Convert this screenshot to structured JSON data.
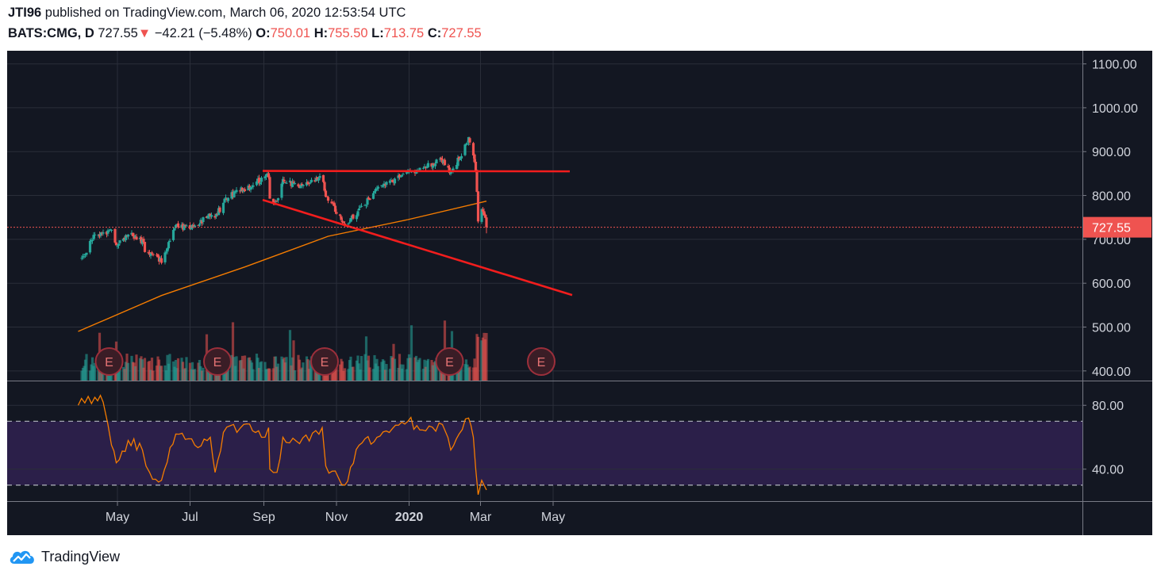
{
  "header": {
    "author": "JTI96",
    "published_text": "published on TradingView.com, March 06, 2020 12:53:54 UTC",
    "symbol": "BATS:CMG, D",
    "last": "727.55",
    "change_arrow": "▼",
    "change": "−42.21 (−5.48%)",
    "o_label": "O:",
    "o_value": "750.01",
    "h_label": "H:",
    "h_value": "755.50",
    "l_label": "L:",
    "l_value": "713.75",
    "c_label": "C:",
    "c_value": "727.55"
  },
  "branding": {
    "logo_text": "TradingView",
    "logo_icon": "tradingview-cloud-icon"
  },
  "colors": {
    "background": "#131722",
    "grid": "#2a2e39",
    "up": "#26a69a",
    "down": "#ef5350",
    "ma": "#f57c00",
    "trendline": "#f21d1d",
    "rsi": "#f57c00",
    "rsi_band": "#2b1f49",
    "axis_text": "#d1d4dc",
    "price_tag": "#ef5350",
    "earnings": "#9c2f3b"
  },
  "chart_data": [
    {
      "type": "candlestick",
      "title": "BATS:CMG, D",
      "price_axis_ticks": [
        "1100.00",
        "1000.00",
        "900.00",
        "800.00",
        "700.00",
        "600.00",
        "500.00",
        "400.00"
      ],
      "ylim": [
        378,
        1130
      ],
      "x_axis_ticks": [
        "May",
        "Jul",
        "Sep",
        "Nov",
        "2020",
        "Mar",
        "May"
      ],
      "current_price_label": "727.55",
      "current_price": 727.55,
      "anchors": [
        {
          "date": "2019-04-01",
          "close": 655
        },
        {
          "date": "2019-04-12",
          "close": 710
        },
        {
          "date": "2019-04-26",
          "close": 718
        },
        {
          "date": "2019-04-30",
          "close": 683
        },
        {
          "date": "2019-05-10",
          "close": 715
        },
        {
          "date": "2019-05-22",
          "close": 696
        },
        {
          "date": "2019-05-24",
          "close": 676
        },
        {
          "date": "2019-06-07",
          "close": 650
        },
        {
          "date": "2019-06-19",
          "close": 730
        },
        {
          "date": "2019-07-05",
          "close": 727
        },
        {
          "date": "2019-07-17",
          "close": 757
        },
        {
          "date": "2019-07-22",
          "close": 752
        },
        {
          "date": "2019-08-01",
          "close": 795
        },
        {
          "date": "2019-08-16",
          "close": 817
        },
        {
          "date": "2019-08-31",
          "close": 837
        },
        {
          "date": "2019-09-05",
          "close": 845
        },
        {
          "date": "2019-09-06",
          "close": 790
        },
        {
          "date": "2019-09-12",
          "close": 790
        },
        {
          "date": "2019-09-17",
          "close": 840
        },
        {
          "date": "2019-10-01",
          "close": 816
        },
        {
          "date": "2019-10-20",
          "close": 845
        },
        {
          "date": "2019-10-23",
          "close": 800
        },
        {
          "date": "2019-11-08",
          "close": 735
        },
        {
          "date": "2019-11-20",
          "close": 765
        },
        {
          "date": "2019-12-05",
          "close": 813
        },
        {
          "date": "2019-12-31",
          "close": 850
        },
        {
          "date": "2020-01-15",
          "close": 868
        },
        {
          "date": "2020-01-29",
          "close": 880
        },
        {
          "date": "2020-02-05",
          "close": 853
        },
        {
          "date": "2020-02-12",
          "close": 885
        },
        {
          "date": "2020-02-20",
          "close": 930
        },
        {
          "date": "2020-02-24",
          "close": 895
        },
        {
          "date": "2020-02-26",
          "close": 850
        },
        {
          "date": "2020-02-27",
          "close": 810
        },
        {
          "date": "2020-02-28",
          "close": 740
        },
        {
          "date": "2020-03-02",
          "close": 770
        },
        {
          "date": "2020-03-04",
          "close": 760
        },
        {
          "date": "2020-03-05",
          "close": 745
        },
        {
          "date": "2020-03-06",
          "close": 727.55
        }
      ],
      "last_bar": {
        "date": "2020-03-06",
        "open": 750.01,
        "high": 755.5,
        "low": 713.75,
        "close": 727.55
      },
      "moving_average": [
        {
          "date": "2019-03-29",
          "value": 490
        },
        {
          "date": "2019-06-07",
          "value": 572
        },
        {
          "date": "2019-08-16",
          "value": 637
        },
        {
          "date": "2019-10-25",
          "value": 707
        },
        {
          "date": "2019-12-31",
          "value": 745
        },
        {
          "date": "2020-03-06",
          "value": 787
        }
      ],
      "trendlines": [
        {
          "from": {
            "date": "2019-08-31",
            "value": 856
          },
          "to": {
            "date": "2020-05-15",
            "value": 855
          }
        },
        {
          "from": {
            "date": "2019-08-31",
            "value": 790
          },
          "to": {
            "date": "2020-05-17",
            "value": 573
          }
        }
      ],
      "earnings_markers": [
        {
          "date": "2019-04-24",
          "label": "E"
        },
        {
          "date": "2019-07-24",
          "label": "E"
        },
        {
          "date": "2019-10-22",
          "label": "E"
        },
        {
          "date": "2020-02-04",
          "label": "E"
        },
        {
          "date": "2020-04-21",
          "label": "E"
        }
      ]
    },
    {
      "type": "line",
      "title": "RSI",
      "y_axis_ticks": [
        "80.00",
        "40.00"
      ],
      "ylim": [
        20,
        95
      ],
      "levels": [
        70,
        30
      ],
      "points": [
        {
          "date": "2019-03-29",
          "value": 80
        },
        {
          "date": "2019-04-12",
          "value": 85
        },
        {
          "date": "2019-04-19",
          "value": 82
        },
        {
          "date": "2019-04-23",
          "value": 68
        },
        {
          "date": "2019-04-26",
          "value": 55
        },
        {
          "date": "2019-04-30",
          "value": 44
        },
        {
          "date": "2019-05-10",
          "value": 58
        },
        {
          "date": "2019-05-22",
          "value": 52
        },
        {
          "date": "2019-05-28",
          "value": 38
        },
        {
          "date": "2019-06-07",
          "value": 33
        },
        {
          "date": "2019-06-19",
          "value": 62
        },
        {
          "date": "2019-07-05",
          "value": 55
        },
        {
          "date": "2019-07-18",
          "value": 60
        },
        {
          "date": "2019-07-22",
          "value": 38
        },
        {
          "date": "2019-07-29",
          "value": 63
        },
        {
          "date": "2019-08-15",
          "value": 68
        },
        {
          "date": "2019-08-30",
          "value": 60
        },
        {
          "date": "2019-09-05",
          "value": 66
        },
        {
          "date": "2019-09-06",
          "value": 40
        },
        {
          "date": "2019-09-12",
          "value": 38
        },
        {
          "date": "2019-09-17",
          "value": 60
        },
        {
          "date": "2019-10-01",
          "value": 56
        },
        {
          "date": "2019-10-20",
          "value": 66
        },
        {
          "date": "2019-10-23",
          "value": 42
        },
        {
          "date": "2019-11-08",
          "value": 30
        },
        {
          "date": "2019-11-20",
          "value": 55
        },
        {
          "date": "2019-12-05",
          "value": 60
        },
        {
          "date": "2019-12-31",
          "value": 70
        },
        {
          "date": "2020-01-15",
          "value": 64
        },
        {
          "date": "2020-01-29",
          "value": 68
        },
        {
          "date": "2020-02-05",
          "value": 52
        },
        {
          "date": "2020-02-12",
          "value": 62
        },
        {
          "date": "2020-02-20",
          "value": 72
        },
        {
          "date": "2020-02-24",
          "value": 60
        },
        {
          "date": "2020-02-26",
          "value": 40
        },
        {
          "date": "2020-02-28",
          "value": 24
        },
        {
          "date": "2020-03-02",
          "value": 33
        },
        {
          "date": "2020-03-04",
          "value": 30
        },
        {
          "date": "2020-03-06",
          "value": 27
        }
      ]
    }
  ]
}
